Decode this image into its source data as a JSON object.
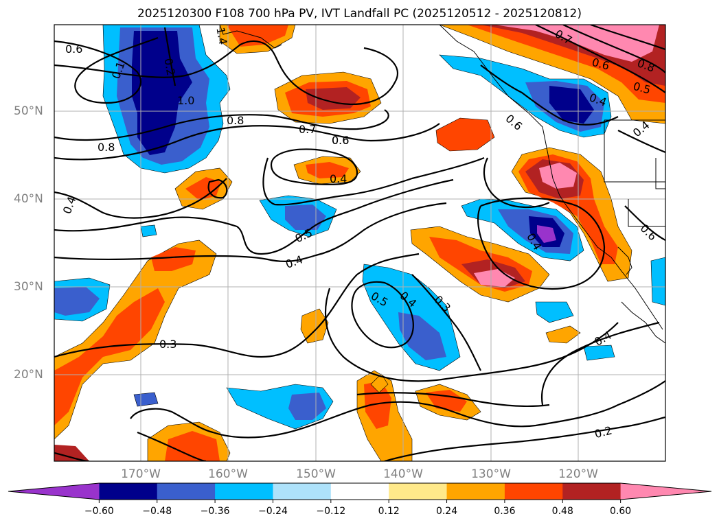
{
  "title": "2025120300 F108 700 hPa PV, IVT Landfall PC (2025120512 - 2025120812)",
  "map": {
    "lon_ticks": [
      "170°W",
      "160°W",
      "150°W",
      "140°W",
      "130°W",
      "120°W"
    ],
    "lat_ticks": [
      "50°N",
      "40°N",
      "30°N",
      "20°N"
    ],
    "contour_labels": [
      "0.6",
      "0.8",
      "0.8",
      "0.4",
      "0.6",
      "0.7",
      "0.6",
      "0.4",
      "0.5",
      "0.4",
      "0.3",
      "0.5",
      "0.4",
      "0.3",
      "0.7",
      "0.6",
      "0.8",
      "0.5",
      "0.4",
      "0.6",
      "0.4",
      "0.6",
      "0.4",
      "0.2",
      "0.4",
      "0.1",
      "0.2",
      "1.0",
      "1.4"
    ]
  },
  "colorbar": {
    "labels": [
      "−0.60",
      "−0.48",
      "−0.36",
      "−0.24",
      "−0.12",
      "0.12",
      "0.24",
      "0.36",
      "0.48",
      "0.60"
    ],
    "colors": [
      "#9933cc",
      "#00008b",
      "#3a5fcd",
      "#00bfff",
      "#aee2fa",
      "#ffffff",
      "#ffe98a",
      "#ffa500",
      "#ff4500",
      "#b22222",
      "#ff88b0",
      "#ff88b0"
    ]
  },
  "colors": {
    "grid": "#b0b0b0",
    "contour": "#000000",
    "coast": "#000000"
  }
}
